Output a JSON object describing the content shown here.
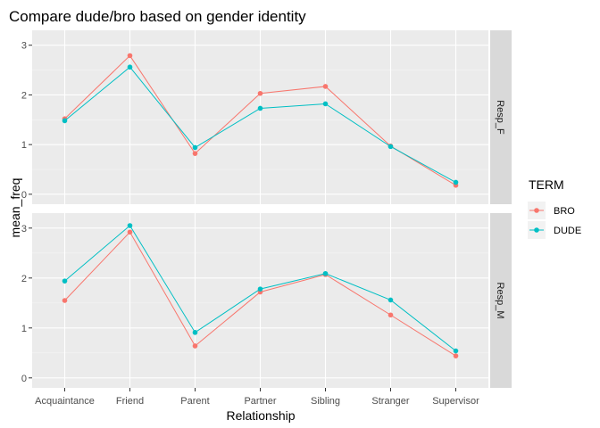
{
  "chart_data": {
    "type": "line",
    "title": "Compare dude/bro based on gender identity",
    "xlabel": "Relationship",
    "ylabel": "mean_freq",
    "categories": [
      "Acquaintance",
      "Friend",
      "Parent",
      "Partner",
      "Sibling",
      "Stranger",
      "Supervisor"
    ],
    "ylim": [
      -0.2,
      3.3
    ],
    "yticks": [
      0,
      1,
      2,
      3
    ],
    "grid": true,
    "legend": {
      "title": "TERM",
      "position": "right"
    },
    "series_colors": {
      "BRO": "#F8766D",
      "DUDE": "#00BFC4"
    },
    "facets": [
      {
        "label": "Resp_F",
        "series": [
          {
            "name": "BRO",
            "values": [
              1.52,
              2.79,
              0.82,
              2.03,
              2.17,
              0.97,
              0.18
            ]
          },
          {
            "name": "DUDE",
            "values": [
              1.48,
              2.56,
              0.94,
              1.73,
              1.82,
              0.96,
              0.24
            ]
          }
        ]
      },
      {
        "label": "Resp_M",
        "series": [
          {
            "name": "BRO",
            "values": [
              1.55,
              2.92,
              0.64,
              1.72,
              2.07,
              1.26,
              0.44
            ]
          },
          {
            "name": "DUDE",
            "values": [
              1.94,
              3.05,
              0.91,
              1.78,
              2.09,
              1.56,
              0.54
            ]
          }
        ]
      }
    ]
  }
}
